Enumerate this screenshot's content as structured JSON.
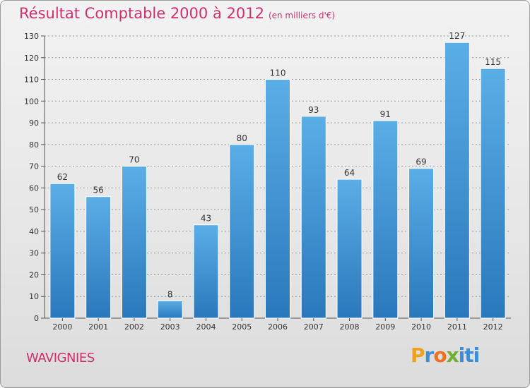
{
  "header": {
    "title": "Résultat Comptable 2000 à 2012",
    "subtitle": "(en milliers d'€)"
  },
  "footer": {
    "town": "WAVIGNIES",
    "logo": "Proxiti"
  },
  "chart_data": {
    "type": "bar",
    "title": "Résultat Comptable 2000 à 2012",
    "subtitle": "(en milliers d'€)",
    "xlabel": "",
    "ylabel": "",
    "categories": [
      "2000",
      "2001",
      "2002",
      "2003",
      "2004",
      "2005",
      "2006",
      "2007",
      "2008",
      "2009",
      "2010",
      "2011",
      "2012"
    ],
    "values": [
      62,
      56,
      70,
      8,
      43,
      80,
      110,
      93,
      64,
      91,
      69,
      127,
      115
    ],
    "ylim": [
      0,
      130
    ],
    "yticks": [
      0,
      10,
      20,
      30,
      40,
      50,
      60,
      70,
      80,
      90,
      100,
      110,
      120,
      130
    ],
    "grid": true,
    "colors": {
      "bar_top": "#5aaee6",
      "bar_bottom": "#2a78bc",
      "grid": "#9a9a9a",
      "text": "#333333",
      "title": "#d0306e"
    }
  }
}
